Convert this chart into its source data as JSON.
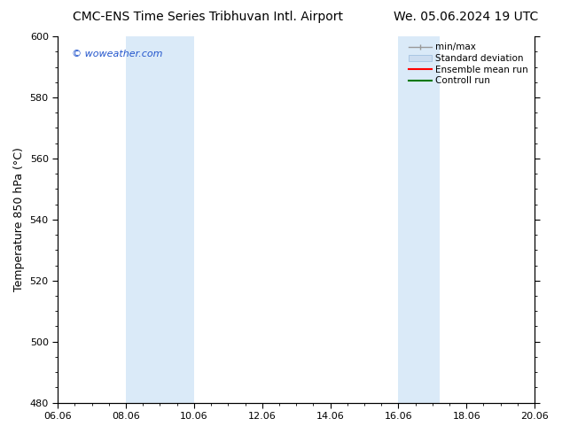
{
  "title_left": "CMC-ENS Time Series Tribhuvan Intl. Airport",
  "title_right": "We. 05.06.2024 19 UTC",
  "ylabel": "Temperature 850 hPa (°C)",
  "ylim": [
    480,
    600
  ],
  "yticks": [
    480,
    500,
    520,
    540,
    560,
    580,
    600
  ],
  "xtick_labels": [
    "06.06",
    "08.06",
    "10.06",
    "12.06",
    "14.06",
    "16.06",
    "18.06",
    "20.06"
  ],
  "xtick_vals": [
    0,
    2,
    4,
    6,
    8,
    10,
    12,
    14
  ],
  "xlim": [
    0,
    14
  ],
  "shaded_regions": [
    {
      "xmin": 2,
      "xmax": 4,
      "color": "#daeaf8"
    },
    {
      "xmin": 10,
      "xmax": 11.2,
      "color": "#daeaf8"
    }
  ],
  "bg_color": "#ffffff",
  "plot_bg_color": "#ffffff",
  "watermark": "© woweather.com",
  "watermark_color": "#2255cc",
  "legend_labels": [
    "min/max",
    "Standard deviation",
    "Ensemble mean run",
    "Controll run"
  ],
  "legend_colors": [
    "#999999",
    "#ccddf0",
    "#ff0000",
    "#007700"
  ],
  "font_family": "DejaVu Sans",
  "title_fontsize": 10,
  "axis_label_fontsize": 9,
  "tick_fontsize": 8,
  "legend_fontsize": 7.5,
  "watermark_fontsize": 8
}
